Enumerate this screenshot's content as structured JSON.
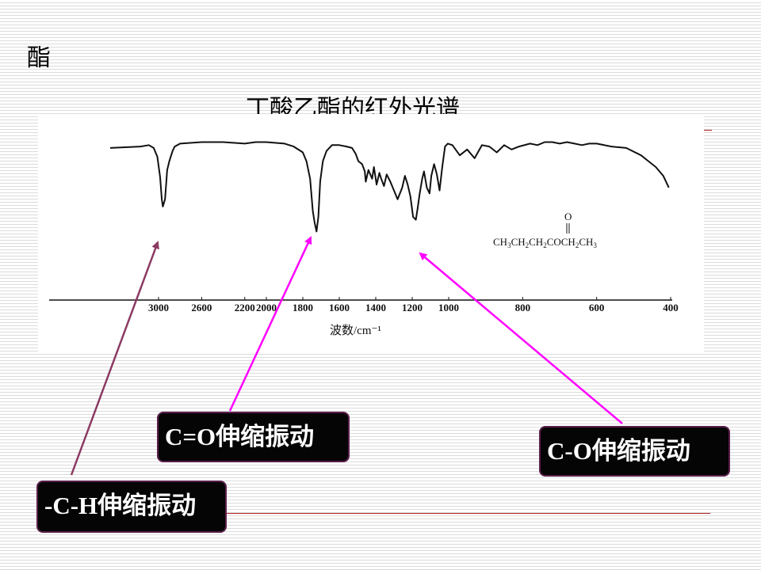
{
  "slide": {
    "heading": "酯"
  },
  "chart_data": {
    "type": "line",
    "title": "丁酸乙酯的红外光谱",
    "xlabel": "波数/cm⁻¹",
    "ylabel": "",
    "x_ticks": [
      {
        "value": 3000,
        "label": "3000"
      },
      {
        "value": 2600,
        "label": "2600"
      },
      {
        "value": 2200,
        "label": "2200"
      },
      {
        "value": 2000,
        "label": "2000"
      },
      {
        "value": 1800,
        "label": "1800"
      },
      {
        "value": 1600,
        "label": "1600"
      },
      {
        "value": 1400,
        "label": "1400"
      },
      {
        "value": 1200,
        "label": "1200"
      },
      {
        "value": 1000,
        "label": "1000"
      },
      {
        "value": 800,
        "label": "800"
      },
      {
        "value": 600,
        "label": "600"
      },
      {
        "value": 400,
        "label": "400"
      }
    ],
    "series": [
      {
        "x": [
          3400,
          3150,
          3080,
          3040,
          3010,
          2985,
          2970,
          2960,
          2940,
          2920,
          2900,
          2870,
          2850,
          2800,
          2600,
          2400,
          2200,
          2100,
          2000,
          1900,
          1850,
          1800,
          1780,
          1760,
          1745,
          1735,
          1725,
          1715,
          1705,
          1690,
          1670,
          1640,
          1600,
          1560,
          1530,
          1510,
          1495,
          1475,
          1460,
          1455,
          1440,
          1420,
          1410,
          1395,
          1380,
          1370,
          1355,
          1340,
          1320,
          1300,
          1280,
          1255,
          1240,
          1225,
          1210,
          1195,
          1180,
          1170,
          1160,
          1145,
          1135,
          1120,
          1105,
          1095,
          1080,
          1065,
          1050,
          1035,
          1020,
          1005,
          990,
          970,
          950,
          930,
          910,
          890,
          870,
          850,
          830,
          810,
          780,
          760,
          740,
          720,
          700,
          680,
          660,
          640,
          620,
          600,
          560,
          520,
          480,
          460,
          440,
          420,
          405
        ],
        "y": [
          93,
          94,
          95,
          93,
          87,
          73,
          58,
          53,
          58,
          78,
          84,
          91,
          94,
          96,
          97,
          97,
          96,
          97,
          97,
          96,
          94,
          90,
          84,
          72,
          50,
          42,
          36,
          46,
          70,
          84,
          91,
          95,
          95,
          94,
          93,
          89,
          84,
          82,
          77,
          70,
          78,
          72,
          80,
          68,
          76,
          72,
          67,
          75,
          70,
          64,
          58,
          66,
          74,
          68,
          60,
          46,
          44,
          52,
          61,
          72,
          77,
          66,
          62,
          74,
          82,
          75,
          64,
          80,
          94,
          96,
          95,
          88,
          92,
          86,
          95,
          94,
          90,
          95,
          92,
          94,
          96,
          95,
          97,
          97,
          96,
          97,
          96,
          95,
          96,
          96,
          94,
          93,
          88,
          84,
          80,
          74,
          66
        ]
      }
    ],
    "annotations": [
      {
        "text": "C=O伸缩振动",
        "x": 1740
      },
      {
        "text": "C-O伸缩振动",
        "x": 1185
      },
      {
        "text": "-C-H伸缩振动",
        "x": 2980
      }
    ],
    "molecule": {
      "oxygen": "O",
      "formula_parts": [
        {
          "text": "CH"
        },
        {
          "sub": "3"
        },
        {
          "text": "CH"
        },
        {
          "sub": "2"
        },
        {
          "text": "CH"
        },
        {
          "sub": "2"
        },
        {
          "text": "COCH"
        },
        {
          "sub": "2"
        },
        {
          "text": "CH"
        },
        {
          "sub": "3"
        }
      ]
    },
    "grid": false,
    "legend": "none"
  },
  "colors": {
    "line": "#111111",
    "arrow_ch": "#8b3a62",
    "arrow_magenta": "#ff00ff",
    "accent_rule": "#b22222"
  }
}
